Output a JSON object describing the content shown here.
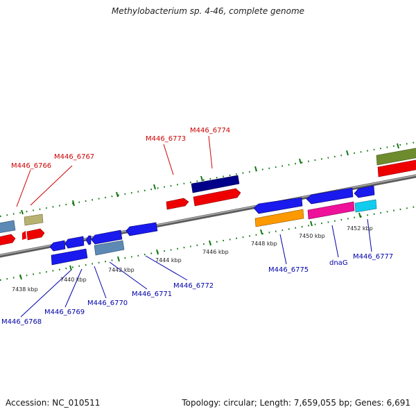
{
  "title": "Methylobacterium sp. 4-46, complete genome",
  "footer": {
    "accession": "Accession: NC_010511",
    "summary": "Topology: circular; Length: 7,659,055 bp; Genes: 6,691"
  },
  "colors": {
    "top_label": "#cc0000",
    "bottom_label": "#0000aa",
    "backbone": "#888888",
    "ticks": "#117711"
  },
  "position_labels": [
    "7438 kbp",
    "7440 kbp",
    "7442 kbp",
    "7444 kbp",
    "7446 kbp",
    "7448 kbp",
    "7450 kbp",
    "7452 kbp"
  ],
  "top_gene_labels": [
    "M446_6766",
    "M446_6767",
    "M446_6773",
    "M446_6774"
  ],
  "bottom_gene_labels": [
    "M446_6768",
    "M446_6769",
    "M446_6770",
    "M446_6771",
    "M446_6772",
    "M446_6775",
    "dnaG",
    "M446_6777"
  ]
}
